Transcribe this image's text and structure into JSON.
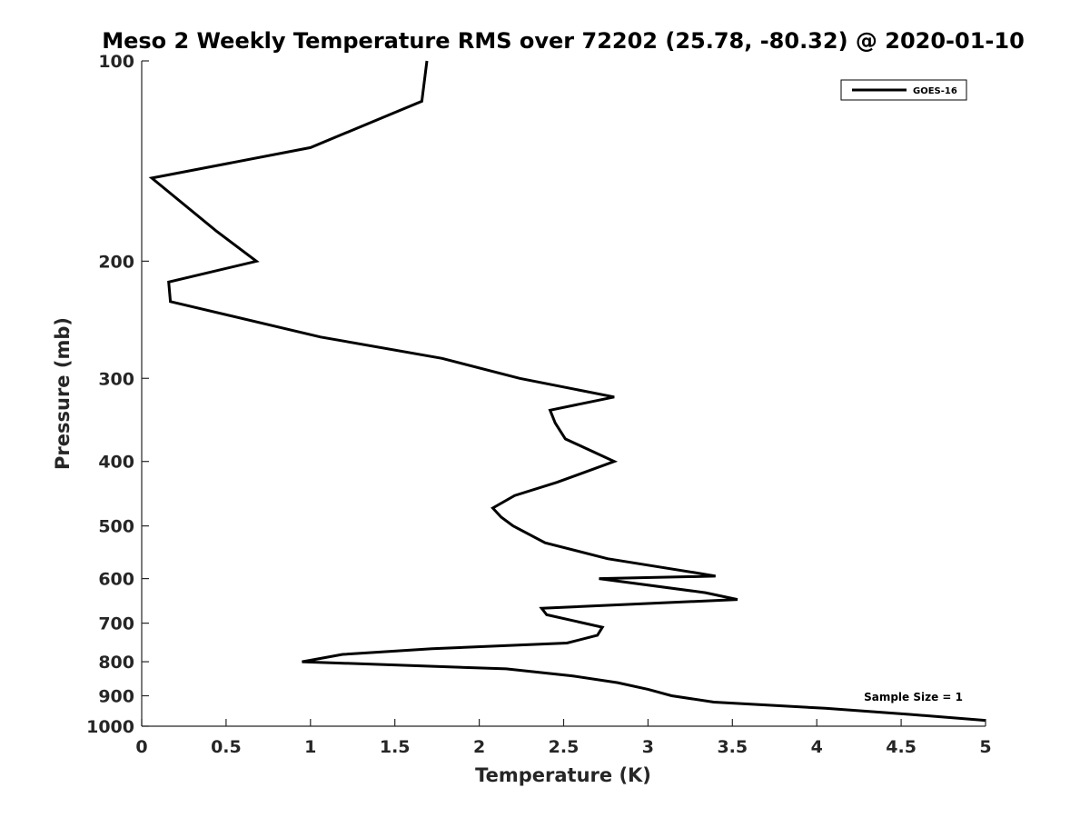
{
  "chart_data": {
    "type": "line",
    "title": "Meso 2 Weekly Temperature RMS over 72202 (25.78, -80.32) @ 2020-01-10",
    "xlabel": "Temperature (K)",
    "ylabel": "Pressure (mb)",
    "xlim": [
      0,
      5
    ],
    "ylim": [
      100,
      1000
    ],
    "yscale": "log",
    "y_inverted": true,
    "grid": false,
    "legend_position": "top-right",
    "xticks": [
      0,
      0.5,
      1,
      1.5,
      2,
      2.5,
      3,
      3.5,
      4,
      4.5,
      5
    ],
    "xtick_labels": [
      "0",
      "0.5",
      "1",
      "1.5",
      "2",
      "2.5",
      "3",
      "3.5",
      "4",
      "4.5",
      "5"
    ],
    "yticks": [
      100,
      200,
      300,
      400,
      500,
      600,
      700,
      800,
      900,
      1000
    ],
    "ytick_labels": [
      "100",
      "200",
      "300",
      "400",
      "500",
      "600",
      "700",
      "800",
      "900",
      "1000"
    ],
    "line_color": "#000000",
    "series": [
      {
        "name": "GOES-16",
        "x": [
          1.69,
          1.66,
          1.0,
          0.06,
          0.44,
          0.68,
          0.16,
          0.17,
          1.06,
          1.78,
          2.24,
          2.8,
          2.42,
          2.45,
          2.51,
          2.8,
          2.46,
          2.21,
          2.08,
          2.13,
          2.2,
          2.39,
          2.76,
          3.32,
          3.4,
          2.71,
          3.34,
          3.53,
          2.37,
          2.4,
          2.73,
          2.7,
          2.52,
          1.72,
          1.19,
          0.95,
          2.16,
          2.55,
          2.82,
          3.0,
          3.14,
          3.39,
          4.05,
          4.55,
          5.0
        ],
        "y": [
          100,
          115,
          135,
          150,
          180,
          200,
          215,
          230,
          260,
          280,
          300,
          320,
          335,
          350,
          370,
          400,
          430,
          450,
          470,
          485,
          500,
          530,
          560,
          590,
          595,
          600,
          630,
          645,
          665,
          680,
          710,
          730,
          750,
          765,
          780,
          800,
          820,
          840,
          860,
          880,
          900,
          920,
          940,
          960,
          980
        ]
      }
    ],
    "annotation": "Sample Size = 1"
  }
}
